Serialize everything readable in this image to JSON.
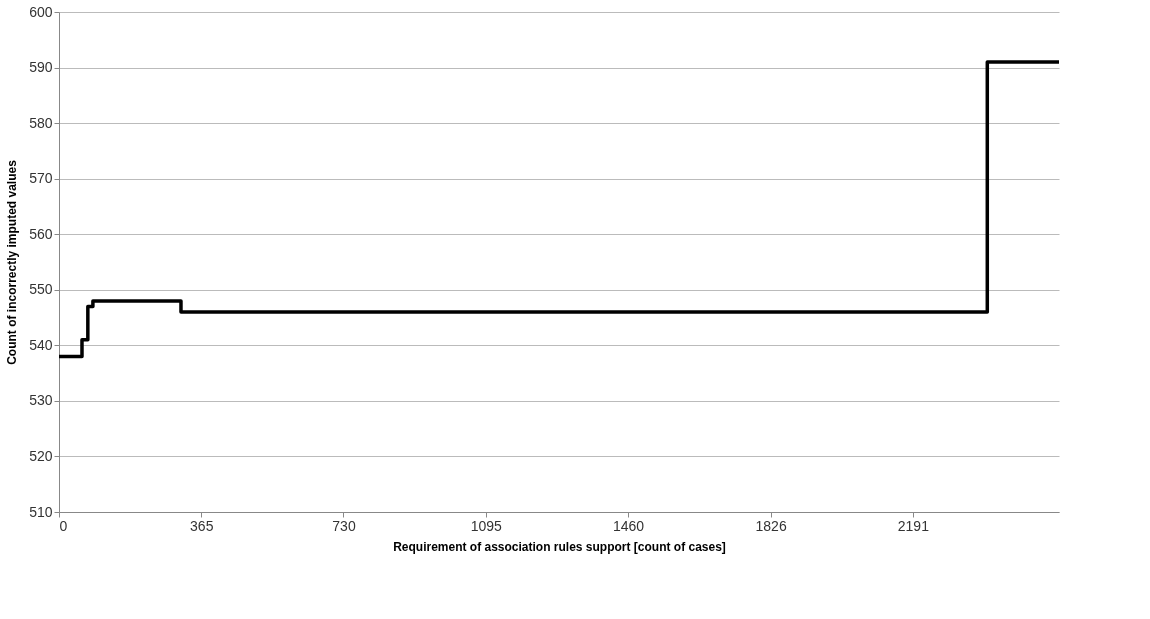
{
  "chart_data": {
    "type": "step",
    "xlabel": "Requirement of association rules support [count of cases]",
    "ylabel": "Count of incorrectly imputed values",
    "x": [
      0,
      59,
      74,
      87,
      313,
      2382,
      2566
    ],
    "series": [
      {
        "color": "#000000",
        "values": [
          538,
          541,
          547,
          548,
          546,
          591,
          591
        ]
      }
    ],
    "xlim": [
      0,
      2566
    ],
    "xticks": [
      0,
      365,
      730,
      1095,
      1460,
      1826,
      2191
    ],
    "ylim": [
      510,
      600
    ],
    "yticks": [
      510,
      520,
      530,
      540,
      550,
      560,
      570,
      580,
      590,
      600
    ],
    "grid": "y",
    "marker": "none",
    "line_style": "solid"
  }
}
